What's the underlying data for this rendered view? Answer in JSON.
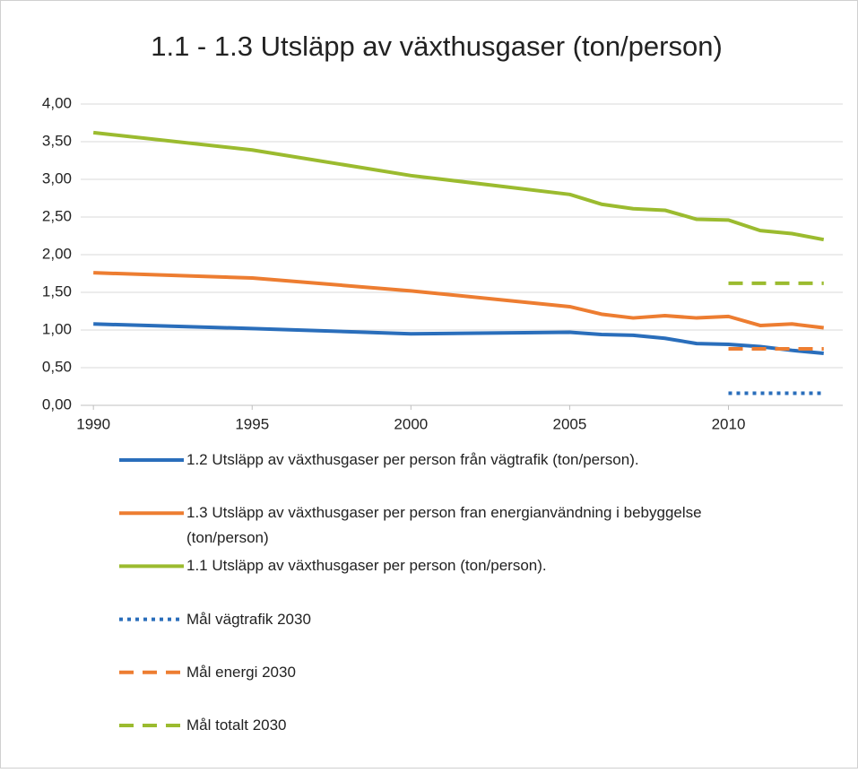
{
  "chart_data": {
    "type": "line",
    "title": "1.1 - 1.3 Utsläpp av växthusgaser (ton/person)",
    "x": [
      1990,
      1995,
      2000,
      2005,
      2006,
      2007,
      2008,
      2009,
      2010,
      2011,
      2012,
      2013
    ],
    "xlim": [
      1989.6,
      2013.6
    ],
    "xticks": [
      1990,
      1995,
      2000,
      2005,
      2010
    ],
    "ylim": [
      0,
      4
    ],
    "yticks": [
      {
        "value": 0,
        "label": "0,00"
      },
      {
        "value": 0.5,
        "label": "0,50"
      },
      {
        "value": 1,
        "label": "1,00"
      },
      {
        "value": 1.5,
        "label": "1,50"
      },
      {
        "value": 2,
        "label": "2,00"
      },
      {
        "value": 2.5,
        "label": "2,50"
      },
      {
        "value": 3,
        "label": "3,00"
      },
      {
        "value": 3.5,
        "label": "3,50"
      },
      {
        "value": 4,
        "label": "4,00"
      }
    ],
    "grid": true,
    "legend": "bottom",
    "series": [
      {
        "name": "1.2 Utsläpp av växthusgaser per person från vägtrafik (ton/person).",
        "color": "#2a6ebb",
        "dash": "solid",
        "values": [
          1.08,
          1.02,
          0.95,
          0.97,
          0.94,
          0.93,
          0.89,
          0.82,
          0.81,
          0.78,
          0.73,
          0.69
        ]
      },
      {
        "name": "1.3 Utsläpp av växthusgaser per person fran energianvändning i bebyggelse (ton/person)",
        "color": "#ed7d31",
        "dash": "solid",
        "values": [
          1.76,
          1.69,
          1.52,
          1.31,
          1.21,
          1.16,
          1.19,
          1.16,
          1.18,
          1.06,
          1.08,
          1.03
        ]
      },
      {
        "name": "1.1 Utsläpp av växthusgaser per person (ton/person).",
        "color": "#9bbb2f",
        "dash": "solid",
        "values": [
          3.62,
          3.39,
          3.05,
          2.8,
          2.67,
          2.61,
          2.59,
          2.47,
          2.46,
          2.32,
          2.28,
          2.2
        ]
      },
      {
        "name": "Mål vägtrafik 2030",
        "color": "#2a6ebb",
        "dash": "dotted",
        "values": [
          null,
          null,
          null,
          null,
          null,
          null,
          null,
          null,
          0.16,
          0.16,
          0.16,
          0.16
        ]
      },
      {
        "name": "Mål energi 2030",
        "color": "#ed7d31",
        "dash": "dashed",
        "values": [
          null,
          null,
          null,
          null,
          null,
          null,
          null,
          null,
          0.75,
          0.75,
          0.75,
          0.75
        ]
      },
      {
        "name": "Mål totalt 2030",
        "color": "#9bbb2f",
        "dash": "dashed",
        "values": [
          null,
          null,
          null,
          null,
          null,
          null,
          null,
          null,
          1.62,
          1.62,
          1.62,
          1.62
        ]
      }
    ]
  }
}
